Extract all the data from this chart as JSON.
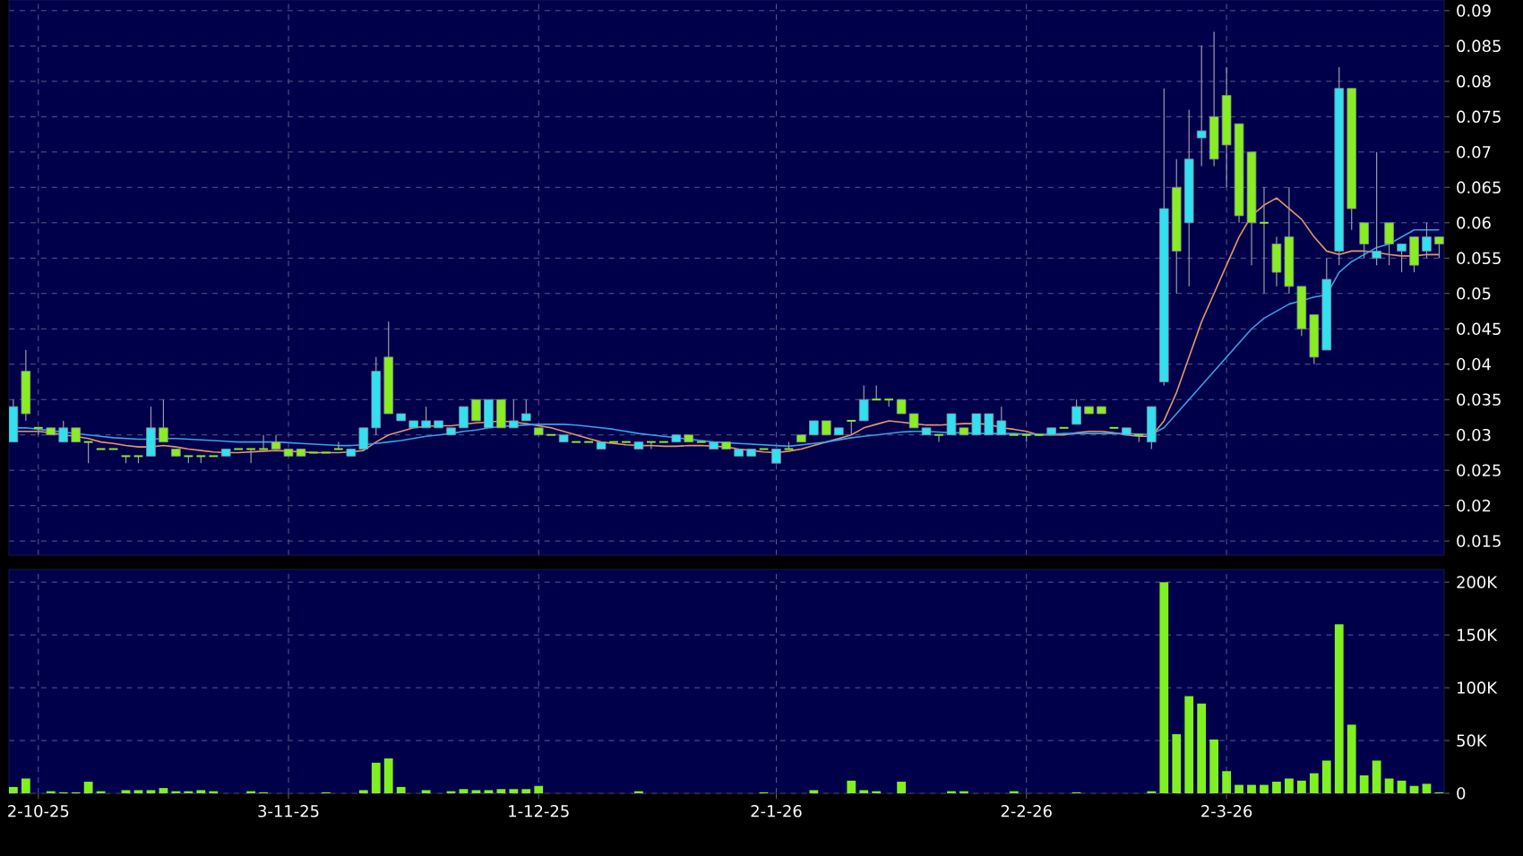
{
  "chart_data": [
    {
      "type": "candlestick",
      "categories": [
        null,
        null,
        null,
        null,
        null,
        null,
        null,
        null,
        null,
        null,
        null,
        null,
        null,
        null,
        null,
        null,
        null,
        null,
        null,
        null,
        null,
        null,
        null,
        null,
        null,
        null,
        null,
        null,
        null,
        null,
        null,
        null,
        null,
        null,
        null,
        null,
        null,
        null,
        null,
        null,
        null,
        null,
        null,
        null,
        null,
        null,
        null,
        null,
        null,
        null,
        null,
        null,
        null,
        null,
        null,
        null,
        null,
        null,
        null,
        null,
        null,
        null,
        null,
        null,
        null,
        null,
        null,
        null,
        null,
        null,
        null,
        null,
        null,
        null,
        null,
        null,
        null,
        null,
        null,
        null,
        null,
        null,
        null,
        null,
        null,
        null,
        null,
        null,
        null,
        null,
        null,
        null,
        null,
        null,
        null,
        null,
        null,
        null,
        null,
        null,
        null,
        null,
        null,
        null,
        null,
        null,
        null,
        null,
        null,
        null,
        null,
        null,
        null,
        null,
        null
      ],
      "ohlc": [
        [
          0.029,
          0.035,
          0.029,
          0.034
        ],
        [
          0.039,
          0.042,
          0.032,
          0.033
        ],
        [
          0.031,
          0.031,
          0.03,
          0.031
        ],
        [
          0.031,
          0.031,
          0.03,
          0.03
        ],
        [
          0.029,
          0.032,
          0.029,
          0.031
        ],
        [
          0.031,
          0.031,
          0.029,
          0.029
        ],
        [
          0.029,
          0.029,
          0.026,
          0.029
        ],
        [
          0.028,
          0.028,
          0.028,
          0.028
        ],
        [
          0.028,
          0.028,
          0.028,
          0.028
        ],
        [
          0.027,
          0.027,
          0.026,
          0.027
        ],
        [
          0.027,
          0.027,
          0.026,
          0.027
        ],
        [
          0.027,
          0.034,
          0.027,
          0.031
        ],
        [
          0.031,
          0.035,
          0.029,
          0.029
        ],
        [
          0.028,
          0.028,
          0.027,
          0.027
        ],
        [
          0.027,
          0.027,
          0.026,
          0.027
        ],
        [
          0.027,
          0.027,
          0.026,
          0.027
        ],
        [
          0.027,
          0.027,
          0.027,
          0.027
        ],
        [
          0.027,
          0.028,
          0.027,
          0.028
        ],
        [
          0.028,
          0.028,
          0.028,
          0.028
        ],
        [
          0.028,
          0.028,
          0.026,
          0.028
        ],
        [
          0.028,
          0.03,
          0.028,
          0.028
        ],
        [
          0.029,
          0.03,
          0.028,
          0.028
        ],
        [
          0.028,
          0.028,
          0.027,
          0.027
        ],
        [
          0.028,
          0.028,
          0.027,
          0.027
        ],
        [
          0.0275,
          0.0275,
          0.0275,
          0.0275
        ],
        [
          0.0275,
          0.0275,
          0.0275,
          0.0275
        ],
        [
          0.028,
          0.029,
          0.028,
          0.028
        ],
        [
          0.027,
          0.028,
          0.027,
          0.028
        ],
        [
          0.028,
          0.031,
          0.028,
          0.031
        ],
        [
          0.031,
          0.041,
          0.03,
          0.039
        ],
        [
          0.041,
          0.046,
          0.033,
          0.033
        ],
        [
          0.032,
          0.033,
          0.032,
          0.033
        ],
        [
          0.031,
          0.032,
          0.031,
          0.032
        ],
        [
          0.031,
          0.034,
          0.031,
          0.032
        ],
        [
          0.031,
          0.032,
          0.031,
          0.032
        ],
        [
          0.03,
          0.031,
          0.03,
          0.031
        ],
        [
          0.031,
          0.034,
          0.031,
          0.034
        ],
        [
          0.035,
          0.035,
          0.032,
          0.032
        ],
        [
          0.031,
          0.035,
          0.031,
          0.035
        ],
        [
          0.035,
          0.035,
          0.031,
          0.031
        ],
        [
          0.031,
          0.035,
          0.031,
          0.032
        ],
        [
          0.032,
          0.035,
          0.032,
          0.033
        ],
        [
          0.031,
          0.031,
          0.03,
          0.03
        ],
        [
          0.03,
          0.03,
          0.03,
          0.03
        ],
        [
          0.029,
          0.03,
          0.029,
          0.03
        ],
        [
          0.029,
          0.029,
          0.029,
          0.029
        ],
        [
          0.029,
          0.029,
          0.029,
          0.029
        ],
        [
          0.028,
          0.029,
          0.028,
          0.029
        ],
        [
          0.029,
          0.029,
          0.029,
          0.029
        ],
        [
          0.029,
          0.029,
          0.029,
          0.029
        ],
        [
          0.028,
          0.029,
          0.028,
          0.029
        ],
        [
          0.029,
          0.029,
          0.028,
          0.029
        ],
        [
          0.029,
          0.029,
          0.029,
          0.029
        ],
        [
          0.029,
          0.03,
          0.029,
          0.03
        ],
        [
          0.03,
          0.03,
          0.029,
          0.029
        ],
        [
          0.029,
          0.029,
          0.029,
          0.029
        ],
        [
          0.028,
          0.029,
          0.028,
          0.029
        ],
        [
          0.029,
          0.029,
          0.028,
          0.028
        ],
        [
          0.027,
          0.028,
          0.027,
          0.028
        ],
        [
          0.027,
          0.028,
          0.027,
          0.028
        ],
        [
          0.028,
          0.028,
          0.028,
          0.028
        ],
        [
          0.026,
          0.028,
          0.026,
          0.028
        ],
        [
          0.028,
          0.029,
          0.028,
          0.028
        ],
        [
          0.03,
          0.03,
          0.029,
          0.029
        ],
        [
          0.03,
          0.032,
          0.03,
          0.032
        ],
        [
          0.032,
          0.032,
          0.03,
          0.03
        ],
        [
          0.03,
          0.031,
          0.03,
          0.031
        ],
        [
          0.032,
          0.032,
          0.03,
          0.032
        ],
        [
          0.032,
          0.037,
          0.032,
          0.035
        ],
        [
          0.035,
          0.037,
          0.035,
          0.035
        ],
        [
          0.035,
          0.035,
          0.034,
          0.035
        ],
        [
          0.035,
          0.035,
          0.033,
          0.033
        ],
        [
          0.033,
          0.033,
          0.031,
          0.031
        ],
        [
          0.03,
          0.031,
          0.03,
          0.031
        ],
        [
          0.03,
          0.03,
          0.029,
          0.03
        ],
        [
          0.03,
          0.033,
          0.03,
          0.033
        ],
        [
          0.031,
          0.031,
          0.03,
          0.03
        ],
        [
          0.03,
          0.033,
          0.03,
          0.033
        ],
        [
          0.03,
          0.033,
          0.03,
          0.033
        ],
        [
          0.03,
          0.034,
          0.03,
          0.032
        ],
        [
          0.03,
          0.03,
          0.03,
          0.03
        ],
        [
          0.03,
          0.03,
          0.029,
          0.03
        ],
        [
          0.03,
          0.03,
          0.03,
          0.03
        ],
        [
          0.03,
          0.031,
          0.03,
          0.031
        ],
        [
          0.031,
          0.031,
          0.031,
          0.031
        ],
        [
          0.0315,
          0.035,
          0.0315,
          0.034
        ],
        [
          0.034,
          0.034,
          0.033,
          0.033
        ],
        [
          0.034,
          0.034,
          0.033,
          0.033
        ],
        [
          0.031,
          0.031,
          0.031,
          0.031
        ],
        [
          0.03,
          0.031,
          0.03,
          0.031
        ],
        [
          0.03,
          0.03,
          0.029,
          0.03
        ],
        [
          0.029,
          0.034,
          0.028,
          0.034
        ],
        [
          0.0375,
          0.079,
          0.037,
          0.062
        ],
        [
          0.065,
          0.069,
          0.05,
          0.056
        ],
        [
          0.06,
          0.076,
          0.051,
          0.069
        ],
        [
          0.072,
          0.085,
          0.068,
          0.073
        ],
        [
          0.075,
          0.087,
          0.068,
          0.069
        ],
        [
          0.078,
          0.082,
          0.065,
          0.071
        ],
        [
          0.074,
          0.074,
          0.06,
          0.061
        ],
        [
          0.07,
          0.07,
          0.054,
          0.06
        ],
        [
          0.06,
          0.065,
          0.05,
          0.06
        ],
        [
          0.057,
          0.058,
          0.051,
          0.053
        ],
        [
          0.058,
          0.065,
          0.05,
          0.051
        ],
        [
          0.051,
          0.051,
          0.044,
          0.045
        ],
        [
          0.047,
          0.047,
          0.04,
          0.041
        ],
        [
          0.042,
          0.055,
          0.042,
          0.052
        ],
        [
          0.056,
          0.082,
          0.054,
          0.079
        ],
        [
          0.079,
          0.079,
          0.059,
          0.062
        ],
        [
          0.06,
          0.06,
          0.055,
          0.057
        ],
        [
          0.055,
          0.07,
          0.054,
          0.056
        ],
        [
          0.06,
          0.06,
          0.054,
          0.057
        ],
        [
          0.056,
          0.057,
          0.053,
          0.057
        ],
        [
          0.058,
          0.058,
          0.053,
          0.054
        ],
        [
          0.056,
          0.06,
          0.055,
          0.058
        ],
        [
          0.058,
          0.058,
          0.055,
          0.057
        ]
      ],
      "colors": [
        "#33e0f0",
        "#88ee22",
        "#88ee22",
        "#88ee22",
        "#33e0f0",
        "#88ee22",
        "#88ee22",
        "#88ee22",
        "#88ee22",
        "#88ee22",
        "#88ee22",
        "#33e0f0",
        "#88ee22",
        "#88ee22",
        "#88ee22",
        "#88ee22",
        "#88ee22",
        "#33e0f0",
        "#88ee22",
        "#88ee22",
        "#88ee22",
        "#88ee22",
        "#88ee22",
        "#88ee22",
        "#88ee22",
        "#88ee22",
        "#88ee22",
        "#33e0f0",
        "#33e0f0",
        "#33e0f0",
        "#88ee22",
        "#33e0f0",
        "#33e0f0",
        "#33e0f0",
        "#33e0f0",
        "#33e0f0",
        "#33e0f0",
        "#88ee22",
        "#33e0f0",
        "#88ee22",
        "#33e0f0",
        "#33e0f0",
        "#88ee22",
        "#88ee22",
        "#33e0f0",
        "#88ee22",
        "#88ee22",
        "#33e0f0",
        "#88ee22",
        "#88ee22",
        "#33e0f0",
        "#88ee22",
        "#88ee22",
        "#33e0f0",
        "#88ee22",
        "#88ee22",
        "#33e0f0",
        "#88ee22",
        "#33e0f0",
        "#33e0f0",
        "#88ee22",
        "#33e0f0",
        "#88ee22",
        "#88ee22",
        "#33e0f0",
        "#88ee22",
        "#33e0f0",
        "#88ee22",
        "#33e0f0",
        "#88ee22",
        "#88ee22",
        "#88ee22",
        "#88ee22",
        "#33e0f0",
        "#88ee22",
        "#33e0f0",
        "#88ee22",
        "#33e0f0",
        "#33e0f0",
        "#33e0f0",
        "#88ee22",
        "#88ee22",
        "#88ee22",
        "#33e0f0",
        "#88ee22",
        "#33e0f0",
        "#88ee22",
        "#88ee22",
        "#88ee22",
        "#33e0f0",
        "#88ee22",
        "#33e0f0",
        "#33e0f0",
        "#88ee22",
        "#33e0f0",
        "#33e0f0",
        "#88ee22",
        "#88ee22",
        "#88ee22",
        "#88ee22",
        "#88ee22",
        "#88ee22",
        "#88ee22",
        "#88ee22",
        "#88ee22",
        "#33e0f0",
        "#33e0f0",
        "#88ee22",
        "#88ee22",
        "#33e0f0",
        "#88ee22",
        "#33e0f0",
        "#88ee22",
        "#33e0f0",
        "#88ee22"
      ],
      "series": [
        {
          "type": "line",
          "color": "#e8956a",
          "values": [
            0.0305,
            0.0305,
            0.0305,
            0.0303,
            0.03,
            0.0298,
            0.0295,
            0.029,
            0.0288,
            0.0285,
            0.0283,
            0.0283,
            0.0285,
            0.0283,
            0.028,
            0.0278,
            0.0276,
            0.0275,
            0.0275,
            0.0276,
            0.0277,
            0.0278,
            0.0277,
            0.0276,
            0.0275,
            0.0275,
            0.0275,
            0.0276,
            0.0278,
            0.029,
            0.03,
            0.0305,
            0.031,
            0.0312,
            0.0313,
            0.0313,
            0.0315,
            0.0317,
            0.0318,
            0.032,
            0.0318,
            0.0316,
            0.0313,
            0.031,
            0.0305,
            0.03,
            0.0295,
            0.029,
            0.0288,
            0.0286,
            0.0285,
            0.0285,
            0.0284,
            0.0284,
            0.0285,
            0.0285,
            0.0284,
            0.0283,
            0.028,
            0.0278,
            0.0276,
            0.0275,
            0.0277,
            0.028,
            0.0285,
            0.029,
            0.0295,
            0.03,
            0.031,
            0.0315,
            0.032,
            0.0318,
            0.0316,
            0.0314,
            0.0314,
            0.0315,
            0.0316,
            0.0316,
            0.0315,
            0.031,
            0.0308,
            0.0305,
            0.03,
            0.03,
            0.03,
            0.0303,
            0.0305,
            0.0305,
            0.0303,
            0.03,
            0.0298,
            0.0298,
            0.032,
            0.036,
            0.041,
            0.046,
            0.05,
            0.054,
            0.058,
            0.061,
            0.0625,
            0.0635,
            0.062,
            0.0605,
            0.058,
            0.056,
            0.0555,
            0.056,
            0.056,
            0.0558,
            0.0555,
            0.0553,
            0.0553,
            0.0555,
            0.0555
          ]
        },
        {
          "type": "line",
          "color": "#3aa0e8",
          "values": [
            0.031,
            0.031,
            0.0308,
            0.0306,
            0.0304,
            0.0302,
            0.03,
            0.0298,
            0.0296,
            0.0295,
            0.0294,
            0.0294,
            0.0295,
            0.0295,
            0.0294,
            0.0293,
            0.0292,
            0.0291,
            0.029,
            0.029,
            0.029,
            0.029,
            0.0289,
            0.0288,
            0.0287,
            0.0286,
            0.0285,
            0.0285,
            0.0286,
            0.0288,
            0.029,
            0.0292,
            0.0295,
            0.0298,
            0.03,
            0.0302,
            0.0305,
            0.0307,
            0.031,
            0.0312,
            0.0313,
            0.0314,
            0.0315,
            0.0315,
            0.0315,
            0.0314,
            0.0312,
            0.031,
            0.0308,
            0.0305,
            0.0302,
            0.03,
            0.0298,
            0.0296,
            0.0294,
            0.0292,
            0.029,
            0.0289,
            0.0288,
            0.0287,
            0.0286,
            0.0285,
            0.0284,
            0.0286,
            0.0288,
            0.029,
            0.0293,
            0.0296,
            0.0298,
            0.03,
            0.0302,
            0.0304,
            0.0305,
            0.0305,
            0.0304,
            0.0303,
            0.0303,
            0.0302,
            0.0302,
            0.0302,
            0.0302,
            0.0301,
            0.0301,
            0.0301,
            0.0302,
            0.0302,
            0.0302,
            0.0302,
            0.0302,
            0.0302,
            0.0301,
            0.0301,
            0.031,
            0.033,
            0.035,
            0.037,
            0.039,
            0.041,
            0.043,
            0.045,
            0.0465,
            0.0475,
            0.0485,
            0.049,
            0.0495,
            0.0498,
            0.053,
            0.0545,
            0.0555,
            0.0565,
            0.057,
            0.058,
            0.059,
            0.059,
            0.059
          ]
        }
      ],
      "ylim": [
        0.013,
        0.0915
      ],
      "yticks": [
        0.015,
        0.02,
        0.025,
        0.03,
        0.035,
        0.04,
        0.045,
        0.05,
        0.055,
        0.06,
        0.065,
        0.07,
        0.075,
        0.08,
        0.085,
        0.09
      ],
      "grid": true,
      "tick_labels": "y"
    },
    {
      "type": "bar",
      "categories": [
        null,
        null,
        "2-10-25",
        null,
        null,
        null,
        null,
        null,
        null,
        null,
        null,
        null,
        null,
        null,
        null,
        null,
        null,
        null,
        null,
        null,
        null,
        null,
        "3-11-25",
        null,
        null,
        null,
        null,
        null,
        null,
        null,
        null,
        null,
        null,
        null,
        null,
        null,
        null,
        null,
        null,
        null,
        null,
        null,
        "1-12-25",
        null,
        null,
        null,
        null,
        null,
        null,
        null,
        null,
        null,
        null,
        null,
        null,
        null,
        null,
        null,
        null,
        null,
        null,
        "2-1-26",
        null,
        null,
        null,
        null,
        null,
        null,
        null,
        null,
        null,
        null,
        null,
        null,
        null,
        null,
        null,
        null,
        null,
        null,
        null,
        "2-2-26",
        null,
        null,
        null,
        null,
        null,
        null,
        null,
        null,
        null,
        null,
        null,
        null,
        null,
        null,
        null,
        "2-3-26",
        null,
        null,
        null,
        null,
        null,
        null,
        null,
        null,
        null,
        null,
        null,
        null,
        null,
        null,
        null,
        null,
        null
      ],
      "values": [
        6000,
        14000,
        0,
        2000,
        1000,
        1000,
        11000,
        2000,
        0,
        3000,
        3000,
        3000,
        5000,
        2000,
        2000,
        3000,
        2000,
        0,
        0,
        2000,
        1000,
        0,
        0,
        0,
        0,
        1000,
        0,
        0,
        3000,
        29000,
        33000,
        6000,
        0,
        3000,
        0,
        2000,
        4000,
        3000,
        3000,
        4000,
        4000,
        4000,
        7000,
        0,
        0,
        0,
        0,
        0,
        0,
        0,
        2000,
        0,
        0,
        0,
        0,
        0,
        0,
        0,
        0,
        0,
        1000,
        0,
        0,
        0,
        3000,
        0,
        0,
        12000,
        3000,
        2000,
        0,
        11000,
        0,
        0,
        0,
        2000,
        2000,
        0,
        0,
        0,
        2000,
        0,
        0,
        0,
        0,
        1000,
        0,
        0,
        0,
        0,
        0,
        2000,
        200000,
        56000,
        92000,
        85000,
        51000,
        21000,
        8000,
        8000,
        8000,
        11000,
        14000,
        12000,
        19000,
        31000,
        160000,
        65000,
        17000,
        31000,
        14000,
        12000,
        7000,
        9000,
        1000
      ],
      "color": "#80f020",
      "ylim": [
        0,
        212000
      ],
      "yticks": [
        0,
        {
          "value": 50000,
          "label": "50K"
        },
        {
          "value": 100000,
          "label": "100K"
        },
        {
          "value": 150000,
          "label": "150K"
        },
        {
          "value": 200000,
          "label": "200K"
        }
      ],
      "grid": true
    }
  ]
}
